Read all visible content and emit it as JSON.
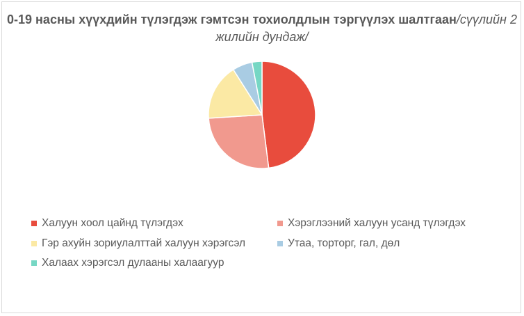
{
  "chart_data": {
    "type": "pie",
    "title_main": "0-19 насны хүүхдийн түлэгдэж  гэмтсэн тохиолдлын тэргүүлэх шалтгаан",
    "title_sub": "/сүүлийн 2 жилийн дундаж/",
    "legend_position": "bottom",
    "slices": [
      {
        "name": "Халуун хоол цайнд түлэгдэх",
        "value": 48,
        "color": "#e84c3d"
      },
      {
        "name": "Хэрэглээний халуун усанд түлэгдэх",
        "value": 26,
        "color": "#f1998e"
      },
      {
        "name": "Гэр ахуйн зориулалттай халуун хэрэгсэл",
        "value": 17,
        "color": "#fbe9a4"
      },
      {
        "name": "Утаа, торторг, гал, дөл",
        "value": 6,
        "color": "#a9cce3"
      },
      {
        "name": "Халаах хэрэгсэл дулааны халаагуур",
        "value": 3,
        "color": "#76d7c4"
      }
    ]
  }
}
